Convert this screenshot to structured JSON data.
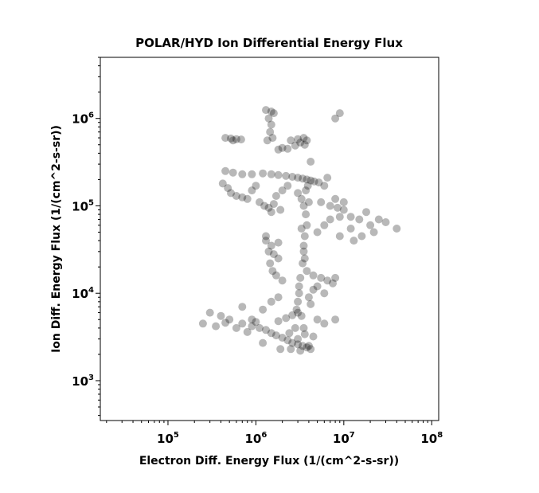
{
  "chart_data": {
    "type": "scatter",
    "title": "POLAR/HYD  Ion Differential Energy Flux",
    "xlabel": "Electron Diff. Energy Flux (1/(cm^2-s-sr))",
    "ylabel": "Ion Diff. Energy Flux (1/(cm^2-s-sr))",
    "xscale": "log",
    "yscale": "log",
    "xlim": [
      17000,
      120000000
    ],
    "ylim": [
      350,
      5000000
    ],
    "xticks": [
      {
        "base": "10",
        "exp": "5"
      },
      {
        "base": "10",
        "exp": "6"
      },
      {
        "base": "10",
        "exp": "7"
      },
      {
        "base": "10",
        "exp": "8"
      }
    ],
    "yticks": [
      {
        "base": "10",
        "exp": "3"
      },
      {
        "base": "10",
        "exp": "4"
      },
      {
        "base": "10",
        "exp": "5"
      },
      {
        "base": "10",
        "exp": "6"
      }
    ],
    "marker_color": "#000000",
    "marker_opacity": 0.28,
    "grid": false,
    "points": [
      [
        1300000,
        1250000
      ],
      [
        1500000,
        1200000
      ],
      [
        1600000,
        1150000
      ],
      [
        1400000,
        1000000
      ],
      [
        1500000,
        850000
      ],
      [
        1450000,
        700000
      ],
      [
        1550000,
        600000
      ],
      [
        1350000,
        560000
      ],
      [
        8000000,
        1000000
      ],
      [
        9000000,
        1150000
      ],
      [
        450000,
        600000
      ],
      [
        520000,
        590000
      ],
      [
        600000,
        580000
      ],
      [
        680000,
        575000
      ],
      [
        550000,
        560000
      ],
      [
        2500000,
        560000
      ],
      [
        3000000,
        580000
      ],
      [
        3500000,
        600000
      ],
      [
        3800000,
        560000
      ],
      [
        3200000,
        530000
      ],
      [
        3600000,
        500000
      ],
      [
        2800000,
        490000
      ],
      [
        2000000,
        460000
      ],
      [
        2300000,
        450000
      ],
      [
        1800000,
        440000
      ],
      [
        4200000,
        320000
      ],
      [
        450000,
        250000
      ],
      [
        550000,
        240000
      ],
      [
        700000,
        230000
      ],
      [
        900000,
        230000
      ],
      [
        1200000,
        235000
      ],
      [
        1500000,
        230000
      ],
      [
        1800000,
        225000
      ],
      [
        2200000,
        220000
      ],
      [
        2600000,
        215000
      ],
      [
        3000000,
        210000
      ],
      [
        3400000,
        205000
      ],
      [
        3800000,
        200000
      ],
      [
        4200000,
        195000
      ],
      [
        4600000,
        190000
      ],
      [
        5200000,
        185000
      ],
      [
        6000000,
        170000
      ],
      [
        6500000,
        210000
      ],
      [
        420000,
        180000
      ],
      [
        480000,
        160000
      ],
      [
        520000,
        140000
      ],
      [
        600000,
        130000
      ],
      [
        700000,
        125000
      ],
      [
        800000,
        120000
      ],
      [
        900000,
        150000
      ],
      [
        1000000,
        170000
      ],
      [
        1100000,
        110000
      ],
      [
        1250000,
        100000
      ],
      [
        1400000,
        95000
      ],
      [
        1600000,
        105000
      ],
      [
        1700000,
        130000
      ],
      [
        2000000,
        150000
      ],
      [
        2300000,
        170000
      ],
      [
        1900000,
        90000
      ],
      [
        1500000,
        85000
      ],
      [
        3000000,
        140000
      ],
      [
        3300000,
        120000
      ],
      [
        3500000,
        100000
      ],
      [
        3700000,
        80000
      ],
      [
        3800000,
        60000
      ],
      [
        3600000,
        45000
      ],
      [
        3500000,
        30000
      ],
      [
        3400000,
        22000
      ],
      [
        3200000,
        15000
      ],
      [
        3100000,
        10000
      ],
      [
        3000000,
        8000
      ],
      [
        2900000,
        6500
      ],
      [
        3900000,
        170000
      ],
      [
        3700000,
        150000
      ],
      [
        3300000,
        55000
      ],
      [
        3500000,
        35000
      ],
      [
        3600000,
        25000
      ],
      [
        3100000,
        12000
      ],
      [
        4000000,
        110000
      ],
      [
        3800000,
        18000
      ],
      [
        1300000,
        40000
      ],
      [
        1500000,
        35000
      ],
      [
        1400000,
        30000
      ],
      [
        1800000,
        38000
      ],
      [
        1600000,
        28000
      ],
      [
        1450000,
        22000
      ],
      [
        1550000,
        18000
      ],
      [
        1700000,
        16000
      ],
      [
        2000000,
        14000
      ],
      [
        1300000,
        45000
      ],
      [
        1800000,
        25000
      ],
      [
        4500000,
        16000
      ],
      [
        5500000,
        15000
      ],
      [
        6500000,
        14000
      ],
      [
        7500000,
        13000
      ],
      [
        5000000,
        12000
      ],
      [
        8000000,
        15000
      ],
      [
        4500000,
        11000
      ],
      [
        6000000,
        10000
      ],
      [
        5500000,
        110000
      ],
      [
        7000000,
        100000
      ],
      [
        8500000,
        95000
      ],
      [
        10000000,
        90000
      ],
      [
        12000000,
        75000
      ],
      [
        15000000,
        70000
      ],
      [
        18000000,
        85000
      ],
      [
        20000000,
        60000
      ],
      [
        25000000,
        70000
      ],
      [
        30000000,
        65000
      ],
      [
        40000000,
        55000
      ],
      [
        22000000,
        50000
      ],
      [
        16000000,
        45000
      ],
      [
        12000000,
        55000
      ],
      [
        9000000,
        75000
      ],
      [
        7000000,
        70000
      ],
      [
        8000000,
        120000
      ],
      [
        10000000,
        110000
      ],
      [
        6000000,
        60000
      ],
      [
        5000000,
        50000
      ],
      [
        9000000,
        45000
      ],
      [
        13000000,
        40000
      ],
      [
        300000,
        6000
      ],
      [
        400000,
        5500
      ],
      [
        500000,
        5000
      ],
      [
        700000,
        4500
      ],
      [
        900000,
        4200
      ],
      [
        1100000,
        4000
      ],
      [
        1300000,
        3800
      ],
      [
        1500000,
        3500
      ],
      [
        1700000,
        3300
      ],
      [
        2000000,
        3100
      ],
      [
        2300000,
        2900
      ],
      [
        2600000,
        2700
      ],
      [
        3000000,
        2600
      ],
      [
        3400000,
        2500
      ],
      [
        3800000,
        2400
      ],
      [
        4200000,
        2300
      ],
      [
        1800000,
        4800
      ],
      [
        2200000,
        5200
      ],
      [
        2600000,
        5600
      ],
      [
        3000000,
        6000
      ],
      [
        3300000,
        5500
      ],
      [
        1900000,
        2300
      ],
      [
        2500000,
        2300
      ],
      [
        3200000,
        2200
      ],
      [
        4000000,
        2500
      ],
      [
        1200000,
        2700
      ],
      [
        4500000,
        3200
      ],
      [
        6000000,
        4500
      ],
      [
        5000000,
        5000
      ],
      [
        8000000,
        5000
      ],
      [
        250000,
        4500
      ],
      [
        350000,
        4200
      ],
      [
        450000,
        4600
      ],
      [
        600000,
        4000
      ],
      [
        800000,
        3600
      ],
      [
        900000,
        5000
      ],
      [
        1000000,
        4700
      ],
      [
        700000,
        7000
      ],
      [
        1200000,
        6500
      ],
      [
        1500000,
        8000
      ],
      [
        1800000,
        9000
      ],
      [
        4000000,
        9000
      ],
      [
        3500000,
        4000
      ],
      [
        4200000,
        7500
      ],
      [
        2400000,
        3500
      ],
      [
        2800000,
        4000
      ],
      [
        3000000,
        3000
      ],
      [
        3600000,
        3400
      ]
    ]
  }
}
